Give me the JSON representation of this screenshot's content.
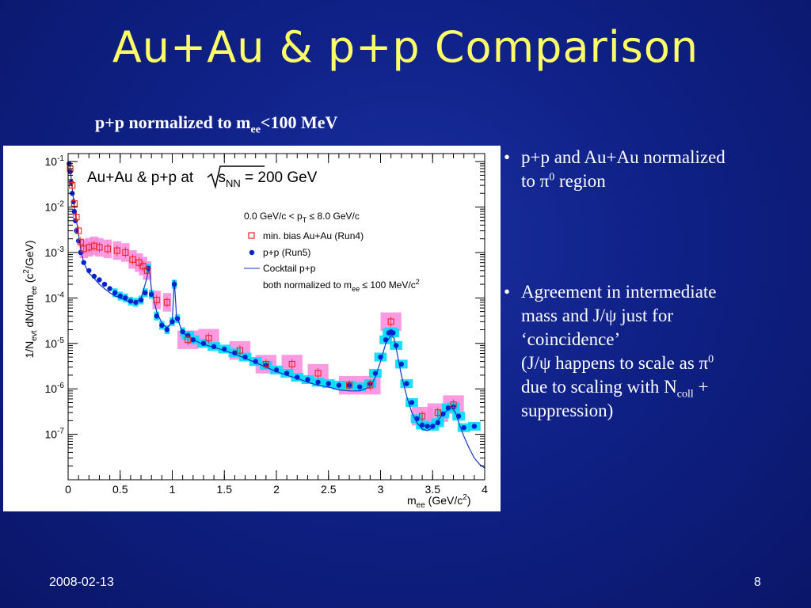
{
  "slide": {
    "title": "Au+Au & p+p Comparison",
    "subtitle_main": "p+p normalized to m",
    "subtitle_sub": "ee",
    "subtitle_rest": "<100 MeV",
    "date": "2008-02-13",
    "page": "8"
  },
  "bullets": {
    "b1_line1": "p+p and Au+Au normalized",
    "b1_line2_pre": "to π",
    "b1_line2_sup": "0",
    "b1_line2_post": " region",
    "b2_line1": "Agreement in intermediate",
    "b2_line2": "mass and J/ψ just for",
    "b2_line3": "‘coincidence’",
    "b2_line4_pre": "(J/ψ happens to scale as π",
    "b2_line4_sup": "0",
    "b2_line5_pre": "due to scaling with N",
    "b2_line5_sub": "coll",
    "b2_line5_post": " +",
    "b2_line6": "suppression)"
  },
  "colors": {
    "background": "#0f2187",
    "title": "#ffff66",
    "auau_marker": "#ee2222",
    "auau_syst": "#ff88dd",
    "pp_marker": "#0022cc",
    "pp_syst": "#00ddff",
    "cocktail": "#1133cc"
  },
  "chart_data": {
    "type": "scatter",
    "yscale": "log",
    "xlim": [
      0,
      4
    ],
    "ylim": [
      1e-08,
      0.15
    ],
    "grid": false,
    "legend_placement": "top-right",
    "x_ticks": [
      0,
      0.5,
      1,
      1.5,
      2,
      2.5,
      3,
      3.5,
      4
    ],
    "x_tick_labels": [
      "0",
      "0.5",
      "1",
      "1.5",
      "2",
      "2.5",
      "3",
      "3.5",
      "4"
    ],
    "y_ticks": [
      1e-07,
      1e-06,
      1e-05,
      0.0001,
      0.001,
      0.01,
      0.1
    ],
    "y_tick_labels": [
      {
        "base": "10",
        "exp": "-7"
      },
      {
        "base": "10",
        "exp": "-6"
      },
      {
        "base": "10",
        "exp": "-5"
      },
      {
        "base": "10",
        "exp": "-4"
      },
      {
        "base": "10",
        "exp": "-3"
      },
      {
        "base": "10",
        "exp": "-2"
      },
      {
        "base": "10",
        "exp": "-1"
      }
    ],
    "xlabel": {
      "main": "m",
      "sub": "ee",
      "rest": " (GeV/c",
      "sup": "2",
      "end": ")"
    },
    "ylabel": {
      "p1": "1/N",
      "s1": "evt",
      "p2": " dN/dm",
      "s2": "ee",
      "p3": " (c",
      "sup": "2",
      "p4": "/GeV)"
    },
    "plot_title": {
      "pre": "Au+Au & p+p at ",
      "s": "s",
      "sub": "NN",
      "post": " = 200 GeV"
    },
    "annotation": {
      "pre": "0.0 GeV/c < p",
      "sub": "T",
      "post": " ≤ 8.0 GeV/c"
    },
    "legend": {
      "auau": "min. bias Au+Au (Run4)",
      "pp": "p+p (Run5)",
      "cocktail": "Cocktail p+p",
      "norm_pre": "both normalized to m",
      "norm_sub": "ee",
      "norm_post": " ≤ 100 MeV/c",
      "norm_sup": "2"
    },
    "series": [
      {
        "name": "min. bias Au+Au (Run4)",
        "marker": "open-square",
        "points": [
          [
            0.02,
            0.07
          ],
          [
            0.04,
            0.03
          ],
          [
            0.06,
            0.012
          ],
          [
            0.08,
            0.006
          ],
          [
            0.1,
            0.003
          ],
          [
            0.12,
            0.0017
          ],
          [
            0.15,
            0.0012
          ],
          [
            0.2,
            0.0013
          ],
          [
            0.25,
            0.0014
          ],
          [
            0.3,
            0.0013
          ],
          [
            0.38,
            0.0012
          ],
          [
            0.47,
            0.0011
          ],
          [
            0.55,
            0.001
          ],
          [
            0.62,
            0.0007
          ],
          [
            0.68,
            0.0006
          ],
          [
            0.72,
            0.0005
          ],
          [
            0.76,
            0.0004
          ],
          [
            0.85,
            9e-05
          ],
          [
            0.95,
            8e-05
          ],
          [
            1.15,
            1.2e-05
          ],
          [
            1.35,
            1.3e-05
          ],
          [
            1.65,
            7e-06
          ],
          [
            1.9,
            3.5e-06
          ],
          [
            2.15,
            3.5e-06
          ],
          [
            2.4,
            2.2e-06
          ],
          [
            2.7,
            1.2e-06
          ],
          [
            2.9,
            1.2e-06
          ],
          [
            3.1,
            3e-05
          ],
          [
            3.4,
            2.5e-07
          ],
          [
            3.55,
            3e-07
          ],
          [
            3.7,
            4.5e-07
          ]
        ]
      },
      {
        "name": "p+p (Run5)",
        "marker": "filled-circle",
        "points": [
          [
            0.01,
            0.09
          ],
          [
            0.02,
            0.06
          ],
          [
            0.03,
            0.035
          ],
          [
            0.04,
            0.02
          ],
          [
            0.05,
            0.013
          ],
          [
            0.06,
            0.008
          ],
          [
            0.07,
            0.005
          ],
          [
            0.08,
            0.003
          ],
          [
            0.1,
            0.0018
          ],
          [
            0.12,
            0.001
          ],
          [
            0.15,
            0.0006
          ],
          [
            0.2,
            0.0004
          ],
          [
            0.25,
            0.0003
          ],
          [
            0.3,
            0.00025
          ],
          [
            0.35,
            0.0002
          ],
          [
            0.4,
            0.00016
          ],
          [
            0.45,
            0.00013
          ],
          [
            0.5,
            0.00011
          ],
          [
            0.55,
            0.0001
          ],
          [
            0.6,
            8.5e-05
          ],
          [
            0.65,
            8e-05
          ],
          [
            0.7,
            9e-05
          ],
          [
            0.74,
            0.00013
          ],
          [
            0.77,
            0.00045
          ],
          [
            0.8,
            0.00012
          ],
          [
            0.85,
            4e-05
          ],
          [
            0.9,
            2.5e-05
          ],
          [
            0.95,
            2e-05
          ],
          [
            1.0,
            3e-05
          ],
          [
            1.02,
            0.0002
          ],
          [
            1.05,
            3.5e-05
          ],
          [
            1.1,
            1.8e-05
          ],
          [
            1.15,
            1.5e-05
          ],
          [
            1.2,
            1.2e-05
          ],
          [
            1.3,
            1e-05
          ],
          [
            1.4,
            8.5e-06
          ],
          [
            1.5,
            7.5e-06
          ],
          [
            1.6,
            6.2e-06
          ],
          [
            1.7,
            5e-06
          ],
          [
            1.8,
            4e-06
          ],
          [
            1.9,
            3.3e-06
          ],
          [
            2.0,
            2.6e-06
          ],
          [
            2.1,
            2.2e-06
          ],
          [
            2.2,
            1.8e-06
          ],
          [
            2.3,
            1.6e-06
          ],
          [
            2.4,
            1.4e-06
          ],
          [
            2.5,
            1.3e-06
          ],
          [
            2.6,
            1.2e-06
          ],
          [
            2.7,
            1.2e-06
          ],
          [
            2.8,
            1.1e-06
          ],
          [
            2.9,
            1.3e-06
          ],
          [
            2.95,
            2.2e-06
          ],
          [
            3.0,
            5e-06
          ],
          [
            3.05,
            1.2e-05
          ],
          [
            3.08,
            1.7e-05
          ],
          [
            3.1,
            1.8e-05
          ],
          [
            3.12,
            1.7e-05
          ],
          [
            3.15,
            9e-06
          ],
          [
            3.2,
            3.5e-06
          ],
          [
            3.25,
            1.3e-06
          ],
          [
            3.3,
            5e-07
          ],
          [
            3.35,
            2.2e-07
          ],
          [
            3.4,
            1.6e-07
          ],
          [
            3.45,
            1.5e-07
          ],
          [
            3.5,
            1.5e-07
          ],
          [
            3.55,
            1.8e-07
          ],
          [
            3.6,
            2.8e-07
          ],
          [
            3.65,
            3.8e-07
          ],
          [
            3.7,
            4e-07
          ],
          [
            3.75,
            2.5e-07
          ],
          [
            3.8,
            1.4e-07
          ],
          [
            3.9,
            1.5e-07
          ]
        ]
      },
      {
        "name": "Cocktail p+p",
        "style": "line",
        "points": [
          [
            0.01,
            0.1
          ],
          [
            0.02,
            0.07
          ],
          [
            0.04,
            0.025
          ],
          [
            0.06,
            0.01
          ],
          [
            0.08,
            0.005
          ],
          [
            0.1,
            0.0025
          ],
          [
            0.12,
            0.0012
          ],
          [
            0.15,
            0.0006
          ],
          [
            0.2,
            0.00035
          ],
          [
            0.25,
            0.00027
          ],
          [
            0.3,
            0.0002
          ],
          [
            0.35,
            0.00016
          ],
          [
            0.4,
            0.00013
          ],
          [
            0.45,
            0.00011
          ],
          [
            0.5,
            0.0001
          ],
          [
            0.55,
            9e-05
          ],
          [
            0.6,
            8e-05
          ],
          [
            0.65,
            8e-05
          ],
          [
            0.7,
            0.0001
          ],
          [
            0.74,
            0.0002
          ],
          [
            0.76,
            0.0003
          ],
          [
            0.78,
            0.0005
          ],
          [
            0.8,
            0.00015
          ],
          [
            0.85,
            5e-05
          ],
          [
            0.9,
            2.8e-05
          ],
          [
            0.95,
            2.2e-05
          ],
          [
            1.0,
            3e-05
          ],
          [
            1.02,
            0.00025
          ],
          [
            1.04,
            4e-05
          ],
          [
            1.1,
            1.7e-05
          ],
          [
            1.2,
            1.2e-05
          ],
          [
            1.3,
            9.5e-06
          ],
          [
            1.4,
            8.2e-06
          ],
          [
            1.5,
            7e-06
          ],
          [
            1.6,
            5.8e-06
          ],
          [
            1.7,
            4.7e-06
          ],
          [
            1.8,
            3.8e-06
          ],
          [
            1.9,
            3e-06
          ],
          [
            2.0,
            2.4e-06
          ],
          [
            2.1,
            2e-06
          ],
          [
            2.2,
            1.7e-06
          ],
          [
            2.3,
            1.4e-06
          ],
          [
            2.4,
            1.2e-06
          ],
          [
            2.5,
            1.1e-06
          ],
          [
            2.6,
            9.5e-07
          ],
          [
            2.7,
            9e-07
          ],
          [
            2.8,
            9e-07
          ],
          [
            2.9,
            1.1e-06
          ],
          [
            2.95,
            1.8e-06
          ],
          [
            3.0,
            4e-06
          ],
          [
            3.05,
            1e-05
          ],
          [
            3.1,
            1.5e-05
          ],
          [
            3.13,
            1.3e-05
          ],
          [
            3.16,
            6e-06
          ],
          [
            3.2,
            2e-06
          ],
          [
            3.25,
            7e-07
          ],
          [
            3.3,
            3e-07
          ],
          [
            3.35,
            1.8e-07
          ],
          [
            3.4,
            1.3e-07
          ],
          [
            3.45,
            1.2e-07
          ],
          [
            3.5,
            1.4e-07
          ],
          [
            3.55,
            2e-07
          ],
          [
            3.6,
            2.8e-07
          ],
          [
            3.65,
            3.5e-07
          ],
          [
            3.68,
            4e-07
          ],
          [
            3.72,
            3e-07
          ],
          [
            3.76,
            1.6e-07
          ],
          [
            3.8,
            9e-08
          ],
          [
            3.85,
            5e-08
          ],
          [
            3.9,
            3e-08
          ],
          [
            3.95,
            2.2e-08
          ],
          [
            4.0,
            1.8e-08
          ]
        ]
      }
    ]
  }
}
